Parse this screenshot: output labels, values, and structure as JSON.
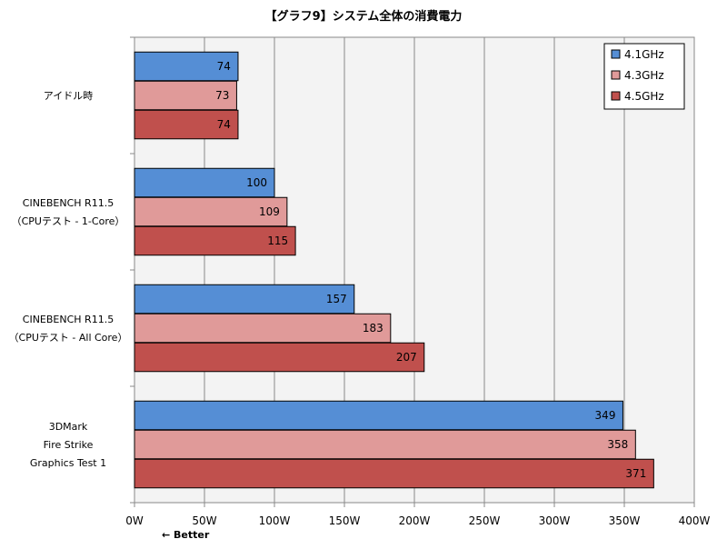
{
  "chart_data": {
    "type": "bar",
    "orientation": "horizontal",
    "title": "【グラフ9】システム全体の消費電力",
    "note": "← Better",
    "categories": [
      [
        "アイドル時"
      ],
      [
        "CINEBENCH R11.5",
        "（CPUテスト - 1-Core）"
      ],
      [
        "CINEBENCH R11.5",
        "（CPUテスト - All Core）"
      ],
      [
        "3DMark",
        "Fire Strike",
        "Graphics Test 1"
      ]
    ],
    "series": [
      {
        "name": "4.1GHz",
        "color": "#558ed5",
        "values": [
          74,
          100,
          157,
          349
        ]
      },
      {
        "name": "4.3GHz",
        "color": "#e09a99",
        "values": [
          73,
          109,
          183,
          358
        ]
      },
      {
        "name": "4.5GHz",
        "color": "#c0504d",
        "values": [
          74,
          115,
          207,
          371
        ]
      }
    ],
    "x_ticks": [
      "0W",
      "50W",
      "100W",
      "150W",
      "200W",
      "250W",
      "300W",
      "350W",
      "400W"
    ],
    "xlim": [
      0,
      400
    ],
    "grid": true,
    "legend_position": "top-right"
  }
}
